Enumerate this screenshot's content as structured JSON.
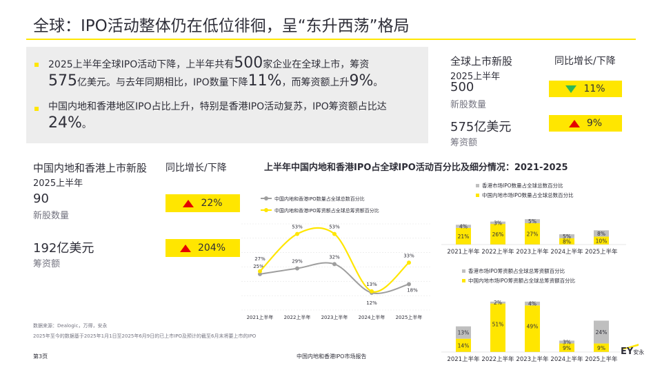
{
  "title": "全球：IPO活动整体仍在低位徘徊，呈“东升西荡”格局",
  "summary": {
    "bullet1_a": "2025上半年全球IPO活动下降，上半年共有",
    "bullet1_num1": "500",
    "bullet1_b": "家企业在全球上市，筹资",
    "bullet1_num2": "575",
    "bullet1_c": "亿美元。与去年同期相比，IPO数量下降",
    "bullet1_num3": "11%",
    "bullet1_d": "，而筹资额上升",
    "bullet1_num4": "9%",
    "bullet1_e": "。",
    "bullet2_a": "中国内地和香港地区IPO占比上升，特别是香港IPO活动复苏，IPO筹资额占比达",
    "bullet2_num": "24%",
    "bullet2_b": "。"
  },
  "global": {
    "heading": "全球上市新股",
    "yoy_heading": "同比增长/下降",
    "period": "2025上半年",
    "count": "500",
    "count_label": "新股数量",
    "count_change": "11%",
    "amount": "575亿美元",
    "amount_label": "筹资额",
    "amount_change": "9%"
  },
  "china": {
    "heading": "中国内地和香港上市新股",
    "yoy_heading": "同比增长/下降",
    "period": "2025上半年",
    "count": "90",
    "count_label": "新股数量",
    "count_change": "22%",
    "amount": "192亿美元",
    "amount_label": "筹资额",
    "amount_change": "204%"
  },
  "chart_title": "上半年中国内地和香港IPO占全球IPO活动百分比及细分情况：2021-2025",
  "colors": {
    "accent": "#ffe600",
    "grey": "#bfbfbf",
    "line_grey": "#9e9e9e",
    "up": "#e50000",
    "down": "#2db757"
  },
  "chart_data": [
    {
      "type": "line",
      "categories": [
        "2021上半年",
        "2022上半年",
        "2023上半年",
        "2024上半年",
        "2025上半年"
      ],
      "series": [
        {
          "name": "中国内地和香港IPO数量占全球总数百分比",
          "values": [
            25,
            29,
            32,
            12,
            18
          ],
          "labels": [
            "25%",
            "29%",
            "32%",
            "12%",
            "18%"
          ]
        },
        {
          "name": "中国内地和香港IPO筹资额占全球总筹资额百分比",
          "values": [
            27,
            53,
            53,
            13,
            33
          ],
          "labels": [
            "27%",
            "53%",
            "53%",
            "13%",
            "33%"
          ]
        }
      ]
    },
    {
      "type": "bar",
      "stacked": true,
      "categories": [
        "2021上半年",
        "2022上半年",
        "2023上半年",
        "2024上半年",
        "2025上半年"
      ],
      "series": [
        {
          "name": "中国内地市场IPO数量占全球总数百分比",
          "values": [
            21,
            26,
            27,
            8,
            10
          ],
          "labels": [
            "21%",
            "26%",
            "27%",
            "8%",
            "10%"
          ]
        },
        {
          "name": "香港市场IPO数量占全球总数百分比",
          "values": [
            4,
            3,
            5,
            5,
            8
          ],
          "labels": [
            "4%",
            "3%",
            "5%",
            "5%",
            "8%"
          ]
        }
      ]
    },
    {
      "type": "bar",
      "stacked": true,
      "categories": [
        "2021上半年",
        "2022上半年",
        "2023上半年",
        "2024上半年",
        "2025上半年"
      ],
      "series": [
        {
          "name": "中国内地市场IPO筹资额占全球总筹资额百分比",
          "values": [
            14,
            51,
            49,
            9,
            9
          ],
          "labels": [
            "14%",
            "51%",
            "49%",
            "9%",
            "9%"
          ]
        },
        {
          "name": "香港市场IPO筹资额占全球总筹资额百分比",
          "values": [
            13,
            2,
            4,
            3,
            24
          ],
          "labels": [
            "13%",
            "2%",
            "4%",
            "3%",
            "24%"
          ]
        }
      ]
    }
  ],
  "footer": {
    "source": "数据来源：Dealogic，万得，安永",
    "note": "2025年至今的数据基于2025年1月1日至2025年6月9日的已上市IPO及预计的截至6月末将要上市的IPO",
    "page": "第3页",
    "report": "中国内地和香港IPO市场报告",
    "logo_text": "EY",
    "logo_cn": "安永"
  }
}
